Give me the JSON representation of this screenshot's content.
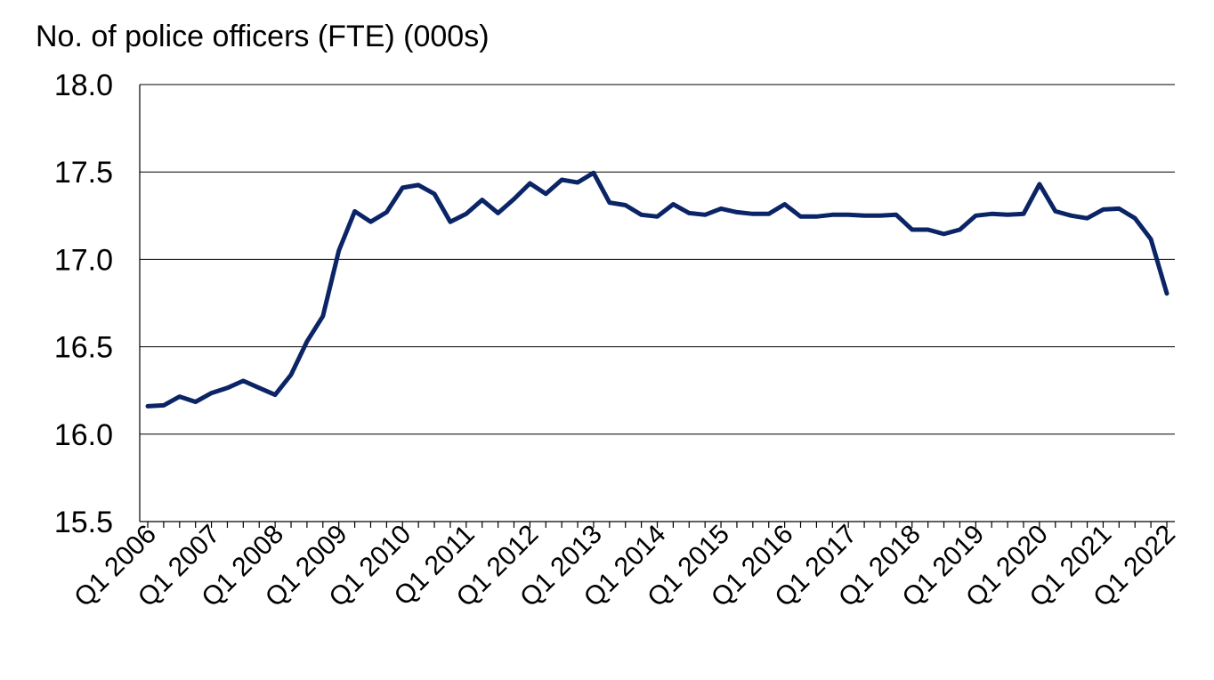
{
  "chart_data": {
    "type": "line",
    "ylabel": "No. of police officers (FTE) (000s)",
    "ylim": [
      15.5,
      18.0
    ],
    "yticks": [
      "15.5",
      "16.0",
      "16.5",
      "17.0",
      "17.5",
      "18.0"
    ],
    "grid": true,
    "categories": [
      "Q1 2006",
      "Q2 2006",
      "Q3 2006",
      "Q4 2006",
      "Q1 2007",
      "Q2 2007",
      "Q3 2007",
      "Q4 2007",
      "Q1 2008",
      "Q2 2008",
      "Q3 2008",
      "Q4 2008",
      "Q1 2009",
      "Q2 2009",
      "Q3 2009",
      "Q4 2009",
      "Q1 2010",
      "Q2 2010",
      "Q3 2010",
      "Q4 2010",
      "Q1 2011",
      "Q2 2011",
      "Q3 2011",
      "Q4 2011",
      "Q1 2012",
      "Q2 2012",
      "Q3 2012",
      "Q4 2012",
      "Q1 2013",
      "Q2 2013",
      "Q3 2013",
      "Q4 2013",
      "Q1 2014",
      "Q2 2014",
      "Q3 2014",
      "Q4 2014",
      "Q1 2015",
      "Q2 2015",
      "Q3 2015",
      "Q4 2015",
      "Q1 2016",
      "Q2 2016",
      "Q3 2016",
      "Q4 2016",
      "Q1 2017",
      "Q2 2017",
      "Q3 2017",
      "Q4 2017",
      "Q1 2018",
      "Q2 2018",
      "Q3 2018",
      "Q4 2018",
      "Q1 2019",
      "Q2 2019",
      "Q3 2019",
      "Q4 2019",
      "Q1 2020",
      "Q2 2020",
      "Q3 2020",
      "Q4 2020",
      "Q1 2021",
      "Q2 2021",
      "Q3 2021",
      "Q4 2021",
      "Q1 2022"
    ],
    "xtick_labels": [
      "Q1 2006",
      "Q1 2007",
      "Q1 2008",
      "Q1 2009",
      "Q1 2010",
      "Q1 2011",
      "Q1 2012",
      "Q1 2013",
      "Q1 2014",
      "Q1 2015",
      "Q1 2016",
      "Q1 2017",
      "Q1 2018",
      "Q1 2019",
      "Q1 2020",
      "Q1 2021",
      "Q1 2022"
    ],
    "series": [
      {
        "color": "#0b2466",
        "values": [
          16.16,
          16.165,
          16.215,
          16.185,
          16.235,
          16.265,
          16.305,
          16.265,
          16.225,
          16.34,
          16.53,
          16.675,
          17.05,
          17.275,
          17.215,
          17.27,
          17.41,
          17.425,
          17.375,
          17.215,
          17.26,
          17.34,
          17.265,
          17.345,
          17.435,
          17.375,
          17.455,
          17.44,
          17.495,
          17.325,
          17.31,
          17.255,
          17.245,
          17.315,
          17.265,
          17.255,
          17.29,
          17.27,
          17.26,
          17.26,
          17.315,
          17.245,
          17.245,
          17.255,
          17.255,
          17.25,
          17.25,
          17.255,
          17.17,
          17.17,
          17.145,
          17.17,
          17.25,
          17.26,
          17.255,
          17.26,
          17.43,
          17.275,
          17.25,
          17.235,
          17.285,
          17.29,
          17.235,
          17.115,
          16.805
        ]
      }
    ]
  }
}
